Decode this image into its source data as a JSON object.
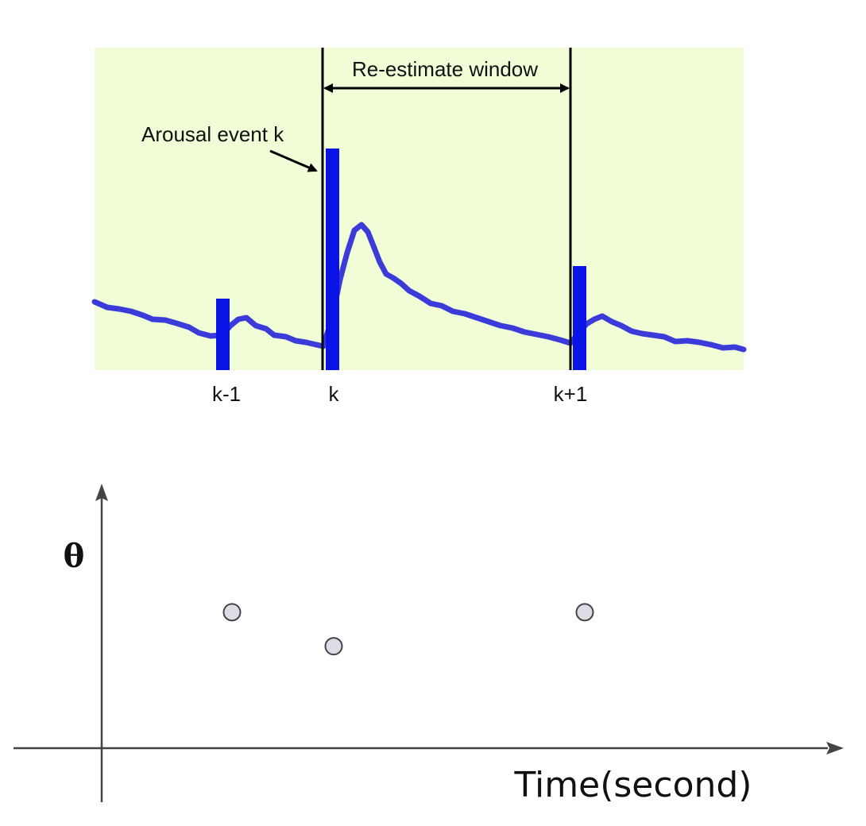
{
  "top_panel": {
    "window_label": "Re-estimate window",
    "event_annotation": "Arousal event k",
    "event_labels": [
      "k-1",
      "k",
      "k+1"
    ],
    "colors": {
      "background": "#f1fdd6",
      "signal": "#3b3bd9",
      "event_bar": "#0a14e6",
      "line": "#000000"
    }
  },
  "bottom_panel": {
    "y_axis_label": "θ",
    "x_axis_label": "Time(second)",
    "points": [
      {
        "event": "k-1",
        "theta": 0.6
      },
      {
        "event": "k",
        "theta": 0.45
      },
      {
        "event": "k+1",
        "theta": 0.6
      }
    ],
    "colors": {
      "point_fill": "#dcdce6",
      "point_stroke": "#444444",
      "axis": "#444444"
    }
  }
}
